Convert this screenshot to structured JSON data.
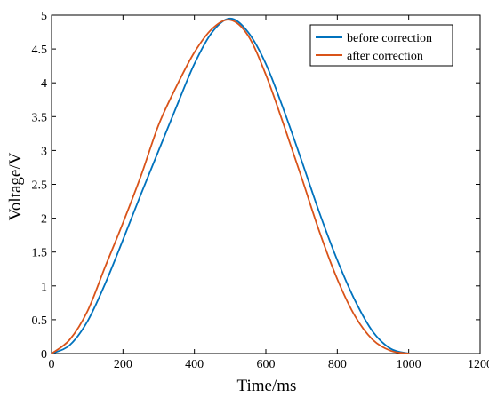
{
  "chart_data": {
    "type": "line",
    "title": "",
    "xlabel": "Time/ms",
    "ylabel": "Voltage/V",
    "xlim": [
      0,
      1200
    ],
    "ylim": [
      0,
      5
    ],
    "xticks": [
      0,
      200,
      400,
      600,
      800,
      1000,
      1200
    ],
    "yticks": [
      0,
      0.5,
      1,
      1.5,
      2,
      2.5,
      3,
      3.5,
      4,
      4.5,
      5
    ],
    "xtick_labels": [
      "0",
      "200",
      "400",
      "600",
      "800",
      "1000",
      "1200"
    ],
    "ytick_labels": [
      "0",
      "0.5",
      "1",
      "1.5",
      "2",
      "2.5",
      "3",
      "3.5",
      "4",
      "4.5",
      "5"
    ],
    "grid": false,
    "legend_position": "top-right",
    "series": [
      {
        "name": "before correction",
        "color": "#0072BD",
        "x": [
          0,
          50,
          100,
          150,
          200,
          250,
          300,
          350,
          400,
          450,
          500,
          550,
          600,
          650,
          700,
          750,
          800,
          850,
          900,
          950,
          1000
        ],
        "y": [
          0,
          0.12,
          0.47,
          1.03,
          1.68,
          2.35,
          3.0,
          3.65,
          4.28,
          4.75,
          4.95,
          4.75,
          4.28,
          3.6,
          2.85,
          2.08,
          1.38,
          0.78,
          0.32,
          0.07,
          0
        ]
      },
      {
        "name": "after correction",
        "color": "#D95319",
        "x": [
          0,
          50,
          100,
          150,
          200,
          250,
          300,
          350,
          400,
          450,
          500,
          550,
          600,
          650,
          700,
          750,
          800,
          850,
          900,
          950,
          1000
        ],
        "y": [
          0,
          0.2,
          0.62,
          1.28,
          1.93,
          2.62,
          3.38,
          3.95,
          4.45,
          4.8,
          4.93,
          4.7,
          4.12,
          3.38,
          2.6,
          1.8,
          1.1,
          0.55,
          0.2,
          0.04,
          0
        ]
      }
    ]
  }
}
